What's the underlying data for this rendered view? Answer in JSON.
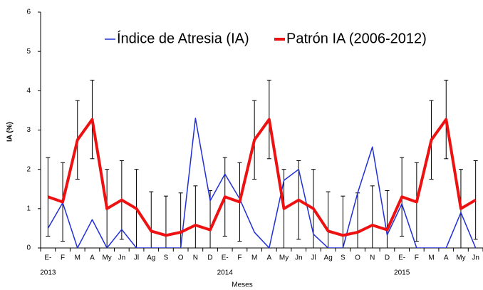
{
  "chart_data": {
    "type": "line",
    "xlabel": "Meses",
    "ylabel": "IA (%)",
    "categories": [
      "E-",
      "F",
      "M",
      "A",
      "My",
      "Jn",
      "Jl",
      "Ag",
      "S",
      "O",
      "N",
      "D",
      "E-",
      "F",
      "M",
      "A",
      "My",
      "Jn",
      "Jl",
      "Ag",
      "S",
      "O",
      "N",
      "D",
      "E-",
      "F",
      "M",
      "A",
      "My",
      "Jn"
    ],
    "year_labels": [
      "2013",
      null,
      null,
      null,
      null,
      null,
      null,
      null,
      null,
      null,
      null,
      null,
      "2014",
      null,
      null,
      null,
      null,
      null,
      null,
      null,
      null,
      null,
      null,
      null,
      "2015",
      null,
      null,
      null,
      null,
      null
    ],
    "series": [
      {
        "name": "Índice de Atresia (IA)",
        "color": "#1f2fd6",
        "width": 1.5,
        "values": [
          0.5,
          1.15,
          0,
          0.72,
          0,
          0.47,
          0,
          0,
          0,
          0,
          3.3,
          1.2,
          1.88,
          1.25,
          0.4,
          0,
          1.72,
          2.0,
          0.35,
          0,
          0,
          1.4,
          2.57,
          0.33,
          1.12,
          0,
          0,
          0,
          0.9,
          0
        ]
      },
      {
        "name": "Patrón IA (2006-2012)",
        "color": "#ee1111",
        "width": 4,
        "values": [
          1.3,
          1.17,
          2.75,
          3.27,
          1.0,
          1.22,
          1.0,
          0.43,
          0.32,
          0.4,
          0.58,
          0.46,
          1.3,
          1.17,
          2.75,
          3.27,
          1.0,
          1.22,
          1.0,
          0.43,
          0.32,
          0.4,
          0.58,
          0.46,
          1.3,
          1.17,
          2.75,
          3.27,
          1.0,
          1.22
        ],
        "errors": [
          1,
          1,
          1,
          1,
          1,
          1,
          1,
          1,
          1,
          1,
          1,
          1,
          1,
          1,
          1,
          1,
          1,
          1,
          1,
          1,
          1,
          1,
          1,
          1,
          1,
          1,
          1,
          1,
          1,
          1
        ]
      }
    ],
    "ylim": [
      0,
      6
    ],
    "yticks": [
      0,
      1,
      2,
      3,
      4,
      5,
      6
    ]
  }
}
